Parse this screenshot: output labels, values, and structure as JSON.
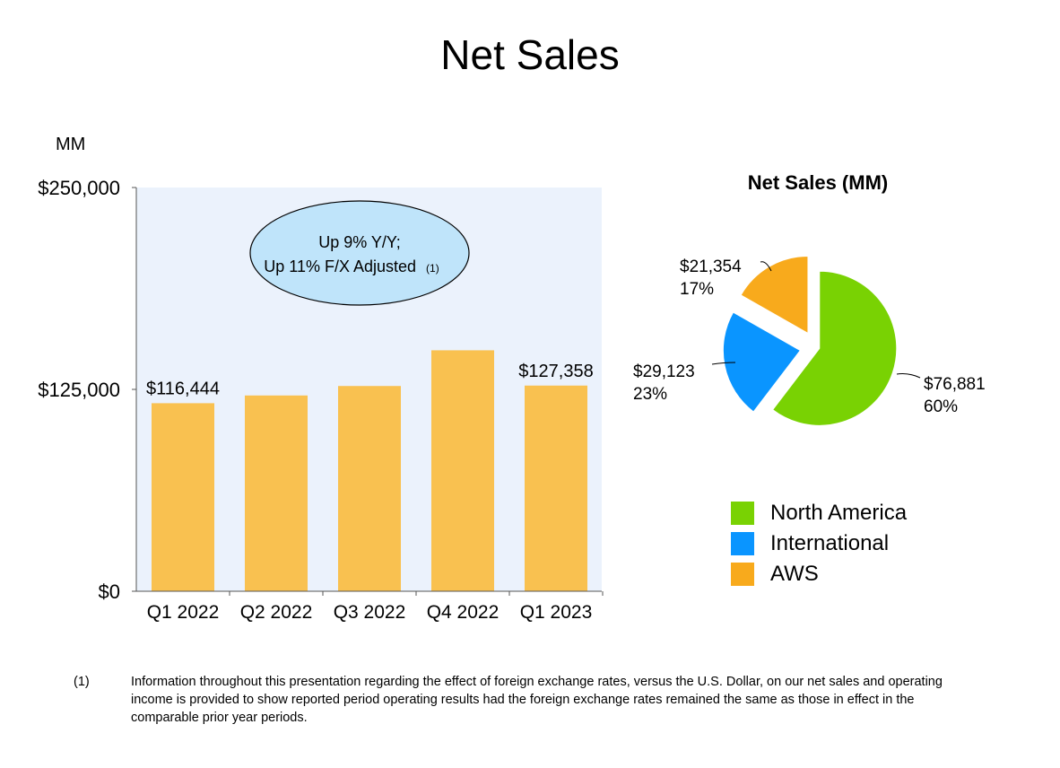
{
  "title": "Net Sales",
  "chart_data": [
    {
      "type": "bar",
      "unit_label": "MM",
      "categories": [
        "Q1 2022",
        "Q2 2022",
        "Q3 2022",
        "Q4 2022",
        "Q1 2023"
      ],
      "values": [
        116444,
        121234,
        127101,
        149204,
        127358
      ],
      "data_labels": [
        "$116,444",
        "",
        "",
        "",
        "$127,358"
      ],
      "ylim": [
        0,
        250000
      ],
      "yticks": [
        0,
        125000,
        250000
      ],
      "ytick_labels": [
        "$0",
        "$125,000",
        "$250,000"
      ],
      "bar_color": "#F9C150",
      "plot_background": "#EBF2FC",
      "annotation": {
        "line1": "Up 9% Y/Y;",
        "line2": "Up 11% F/X Adjusted",
        "note_ref": "(1)"
      }
    },
    {
      "type": "pie",
      "title": "Net Sales (MM)",
      "slices": [
        {
          "name": "North America",
          "value": 76881,
          "value_label": "$76,881",
          "pct_label": "60%",
          "color": "#79D203"
        },
        {
          "name": "International",
          "value": 29123,
          "value_label": "$29,123",
          "pct_label": "23%",
          "color": "#0A95FF"
        },
        {
          "name": "AWS",
          "value": 21354,
          "value_label": "$21,354",
          "pct_label": "17%",
          "color": "#F8AA1C"
        }
      ]
    }
  ],
  "footnote": {
    "mark": "(1)",
    "text": "Information throughout this presentation regarding the effect of foreign exchange rates, versus the U.S. Dollar, on our net sales and operating income is provided to show reported period operating results had the foreign exchange rates remained the same as those in effect in the comparable prior year periods."
  }
}
